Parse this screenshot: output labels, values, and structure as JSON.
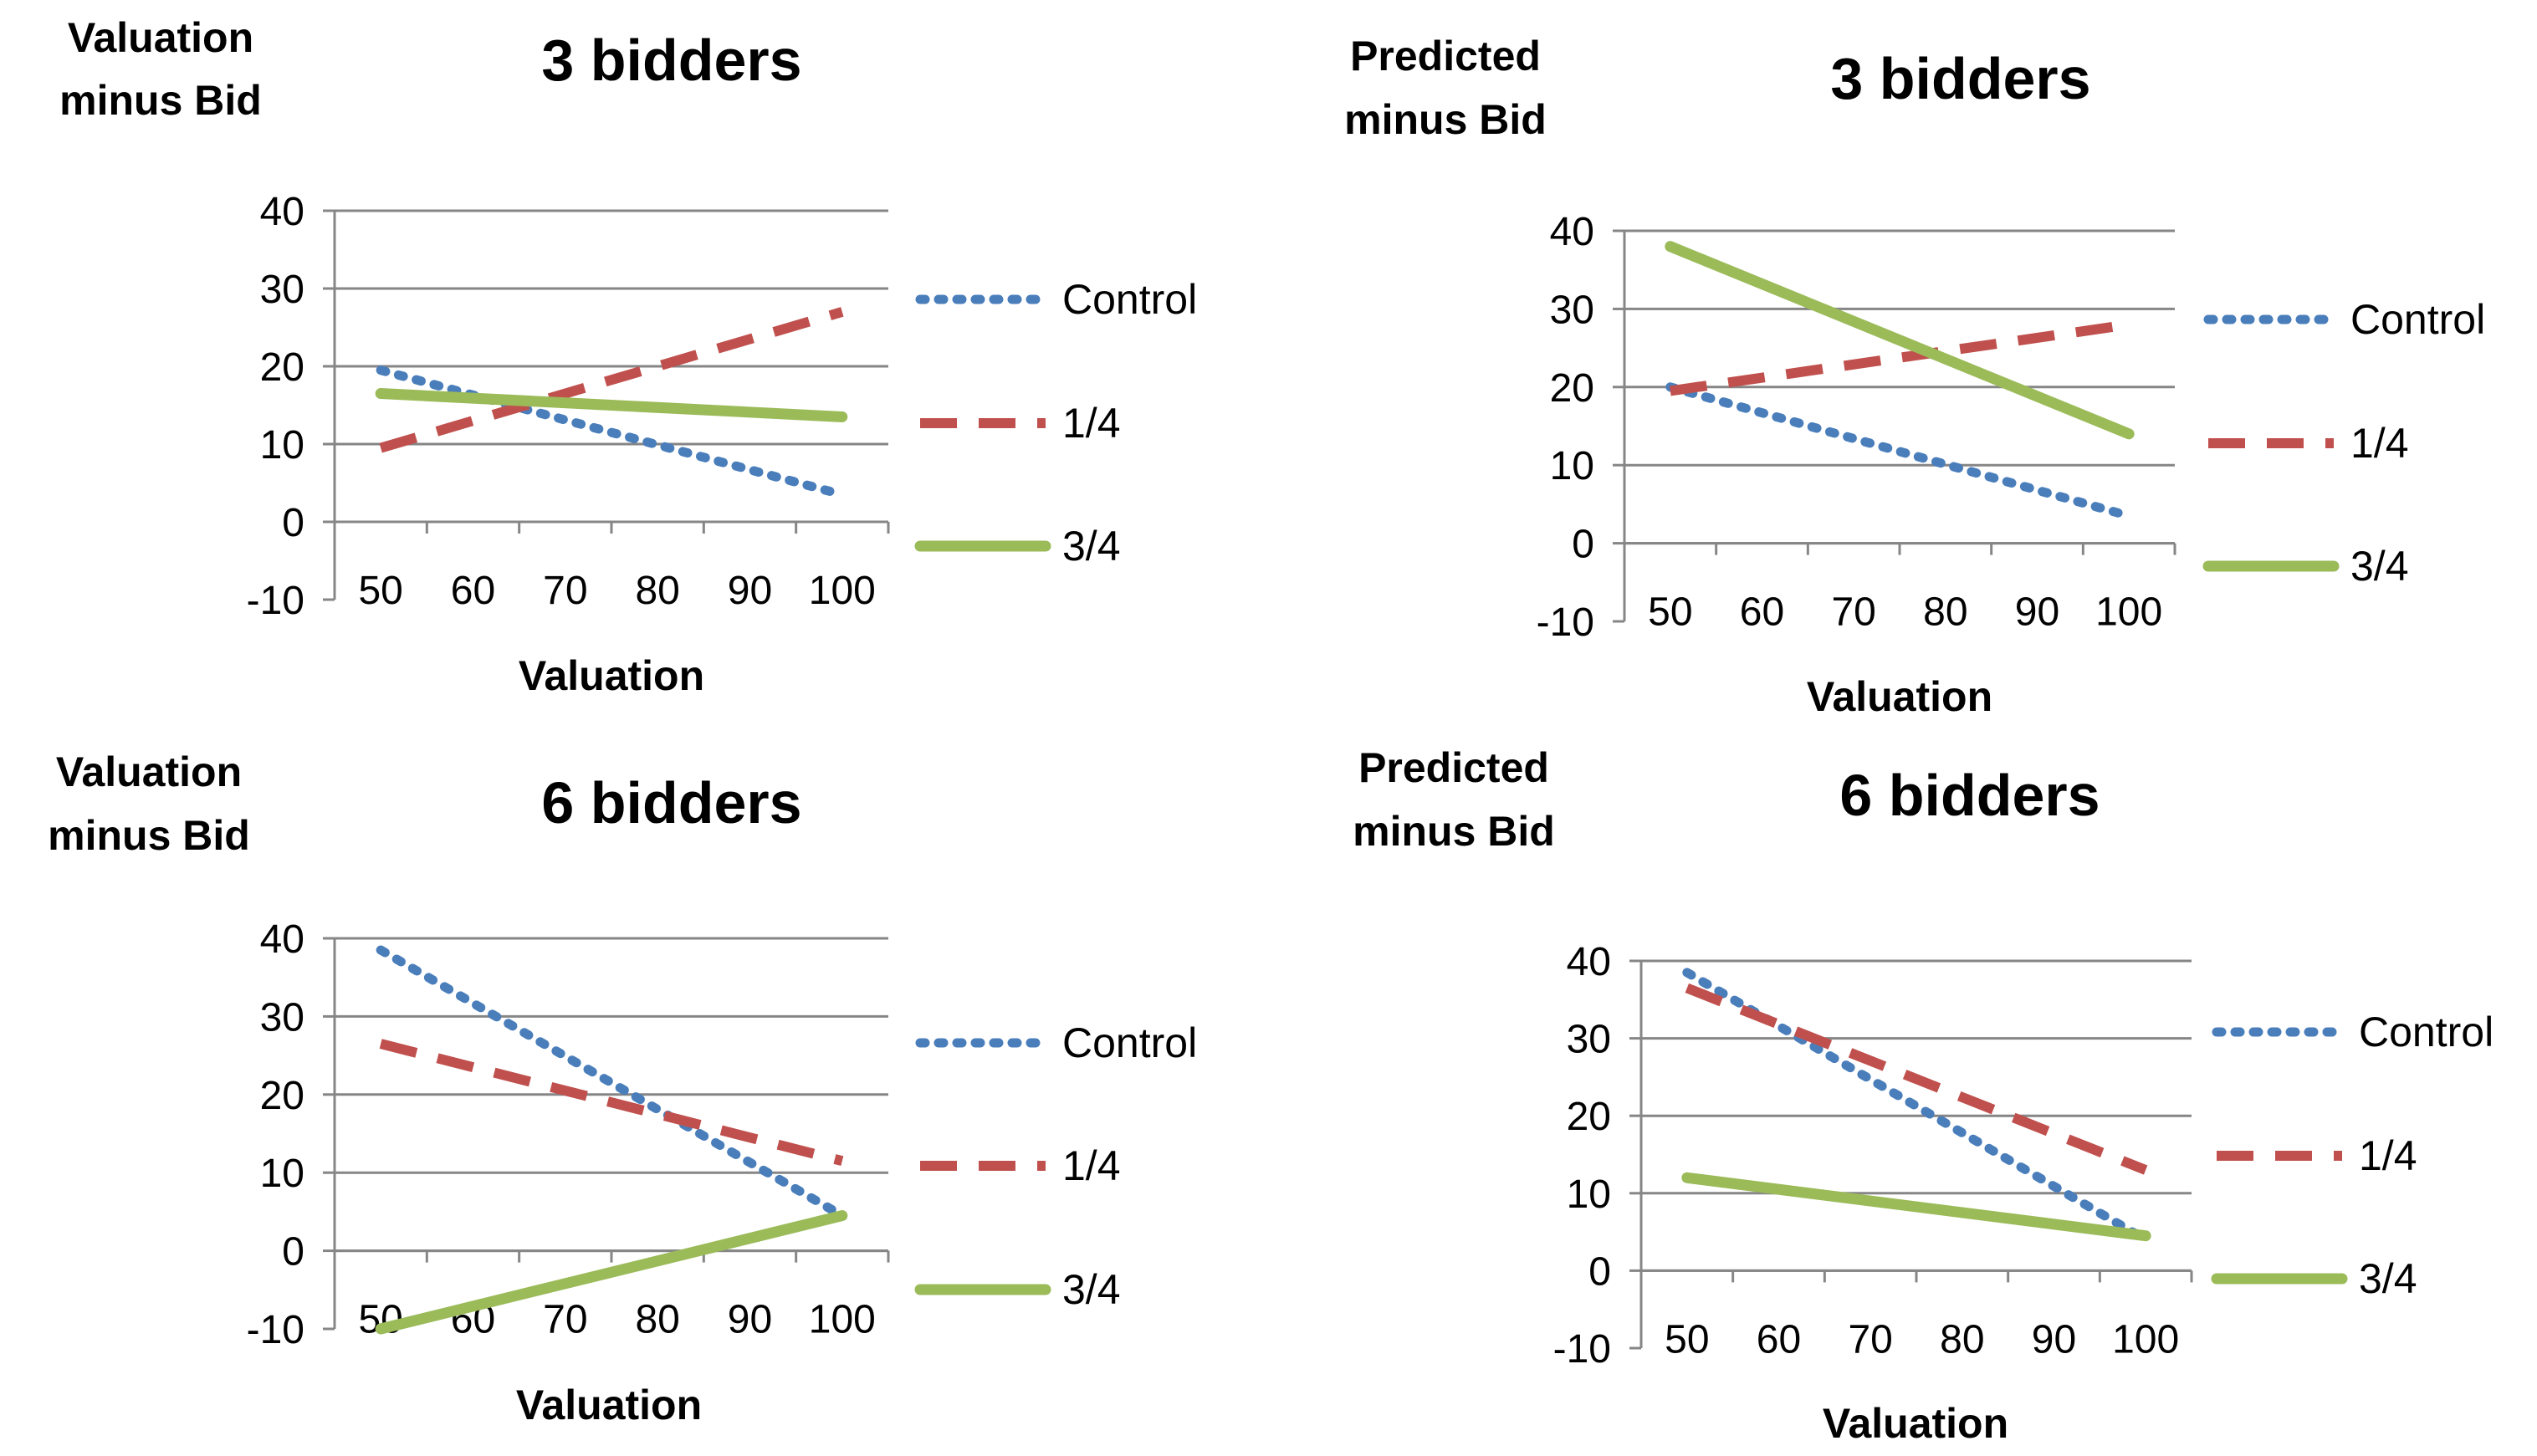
{
  "chart_data": [
    {
      "type": "line",
      "title": "3 bidders",
      "ylabel": [
        "Valuation",
        "minus Bid"
      ],
      "xlabel": "Valuation",
      "categories": [
        "50",
        "60",
        "70",
        "80",
        "90",
        "100"
      ],
      "ylim": [
        -10,
        40
      ],
      "yticks": [
        "40",
        "30",
        "20",
        "10",
        "0",
        "-10"
      ],
      "x": [
        50,
        100
      ],
      "series": [
        {
          "name": "Control",
          "color": "#4a7ebb",
          "values": [
            19.5,
            3.5
          ]
        },
        {
          "name": "1/4",
          "color": "#c0504d",
          "values": [
            9.5,
            27
          ]
        },
        {
          "name": "3/4",
          "color": "#9bbb59",
          "values": [
            16.5,
            13.5
          ]
        }
      ],
      "legend": "right"
    },
    {
      "type": "line",
      "title": "3 bidders",
      "ylabel": [
        "Predicted",
        "minus Bid"
      ],
      "xlabel": "Valuation",
      "categories": [
        "50",
        "60",
        "70",
        "80",
        "90",
        "100"
      ],
      "ylim": [
        -10,
        40
      ],
      "yticks": [
        "40",
        "30",
        "20",
        "10",
        "0",
        "-10"
      ],
      "x": [
        50,
        100
      ],
      "series": [
        {
          "name": "Control",
          "color": "#4a7ebb",
          "values": [
            20,
            3.5
          ]
        },
        {
          "name": "1/4",
          "color": "#c0504d",
          "values": [
            19.5,
            28
          ]
        },
        {
          "name": "3/4",
          "color": "#9bbb59",
          "values": [
            38,
            14
          ]
        }
      ],
      "legend": "right"
    },
    {
      "type": "line",
      "title": "6 bidders",
      "ylabel": [
        "Valuation",
        "minus Bid"
      ],
      "xlabel": "Valuation",
      "categories": [
        "50",
        "60",
        "70",
        "80",
        "90",
        "100"
      ],
      "ylim": [
        -10,
        40
      ],
      "yticks": [
        "40",
        "30",
        "20",
        "10",
        "0",
        "-10"
      ],
      "x": [
        50,
        100
      ],
      "series": [
        {
          "name": "Control",
          "color": "#4a7ebb",
          "values": [
            38.5,
            4.5
          ]
        },
        {
          "name": "1/4",
          "color": "#c0504d",
          "values": [
            26.5,
            11.5
          ]
        },
        {
          "name": "3/4",
          "color": "#9bbb59",
          "values": [
            -10,
            4.5
          ]
        }
      ],
      "legend": "right"
    },
    {
      "type": "line",
      "title": "6 bidders",
      "ylabel": [
        "Predicted",
        "minus Bid"
      ],
      "xlabel": "Valuation",
      "categories": [
        "50",
        "60",
        "70",
        "80",
        "90",
        "100"
      ],
      "ylim": [
        -10,
        40
      ],
      "yticks": [
        "40",
        "30",
        "20",
        "10",
        "0",
        "-10"
      ],
      "x": [
        50,
        100
      ],
      "series": [
        {
          "name": "Control",
          "color": "#4a7ebb",
          "values": [
            38.5,
            4
          ]
        },
        {
          "name": "1/4",
          "color": "#c0504d",
          "values": [
            36.5,
            13
          ]
        },
        {
          "name": "3/4",
          "color": "#9bbb59",
          "values": [
            12,
            4.5
          ]
        }
      ],
      "legend": "right"
    }
  ]
}
